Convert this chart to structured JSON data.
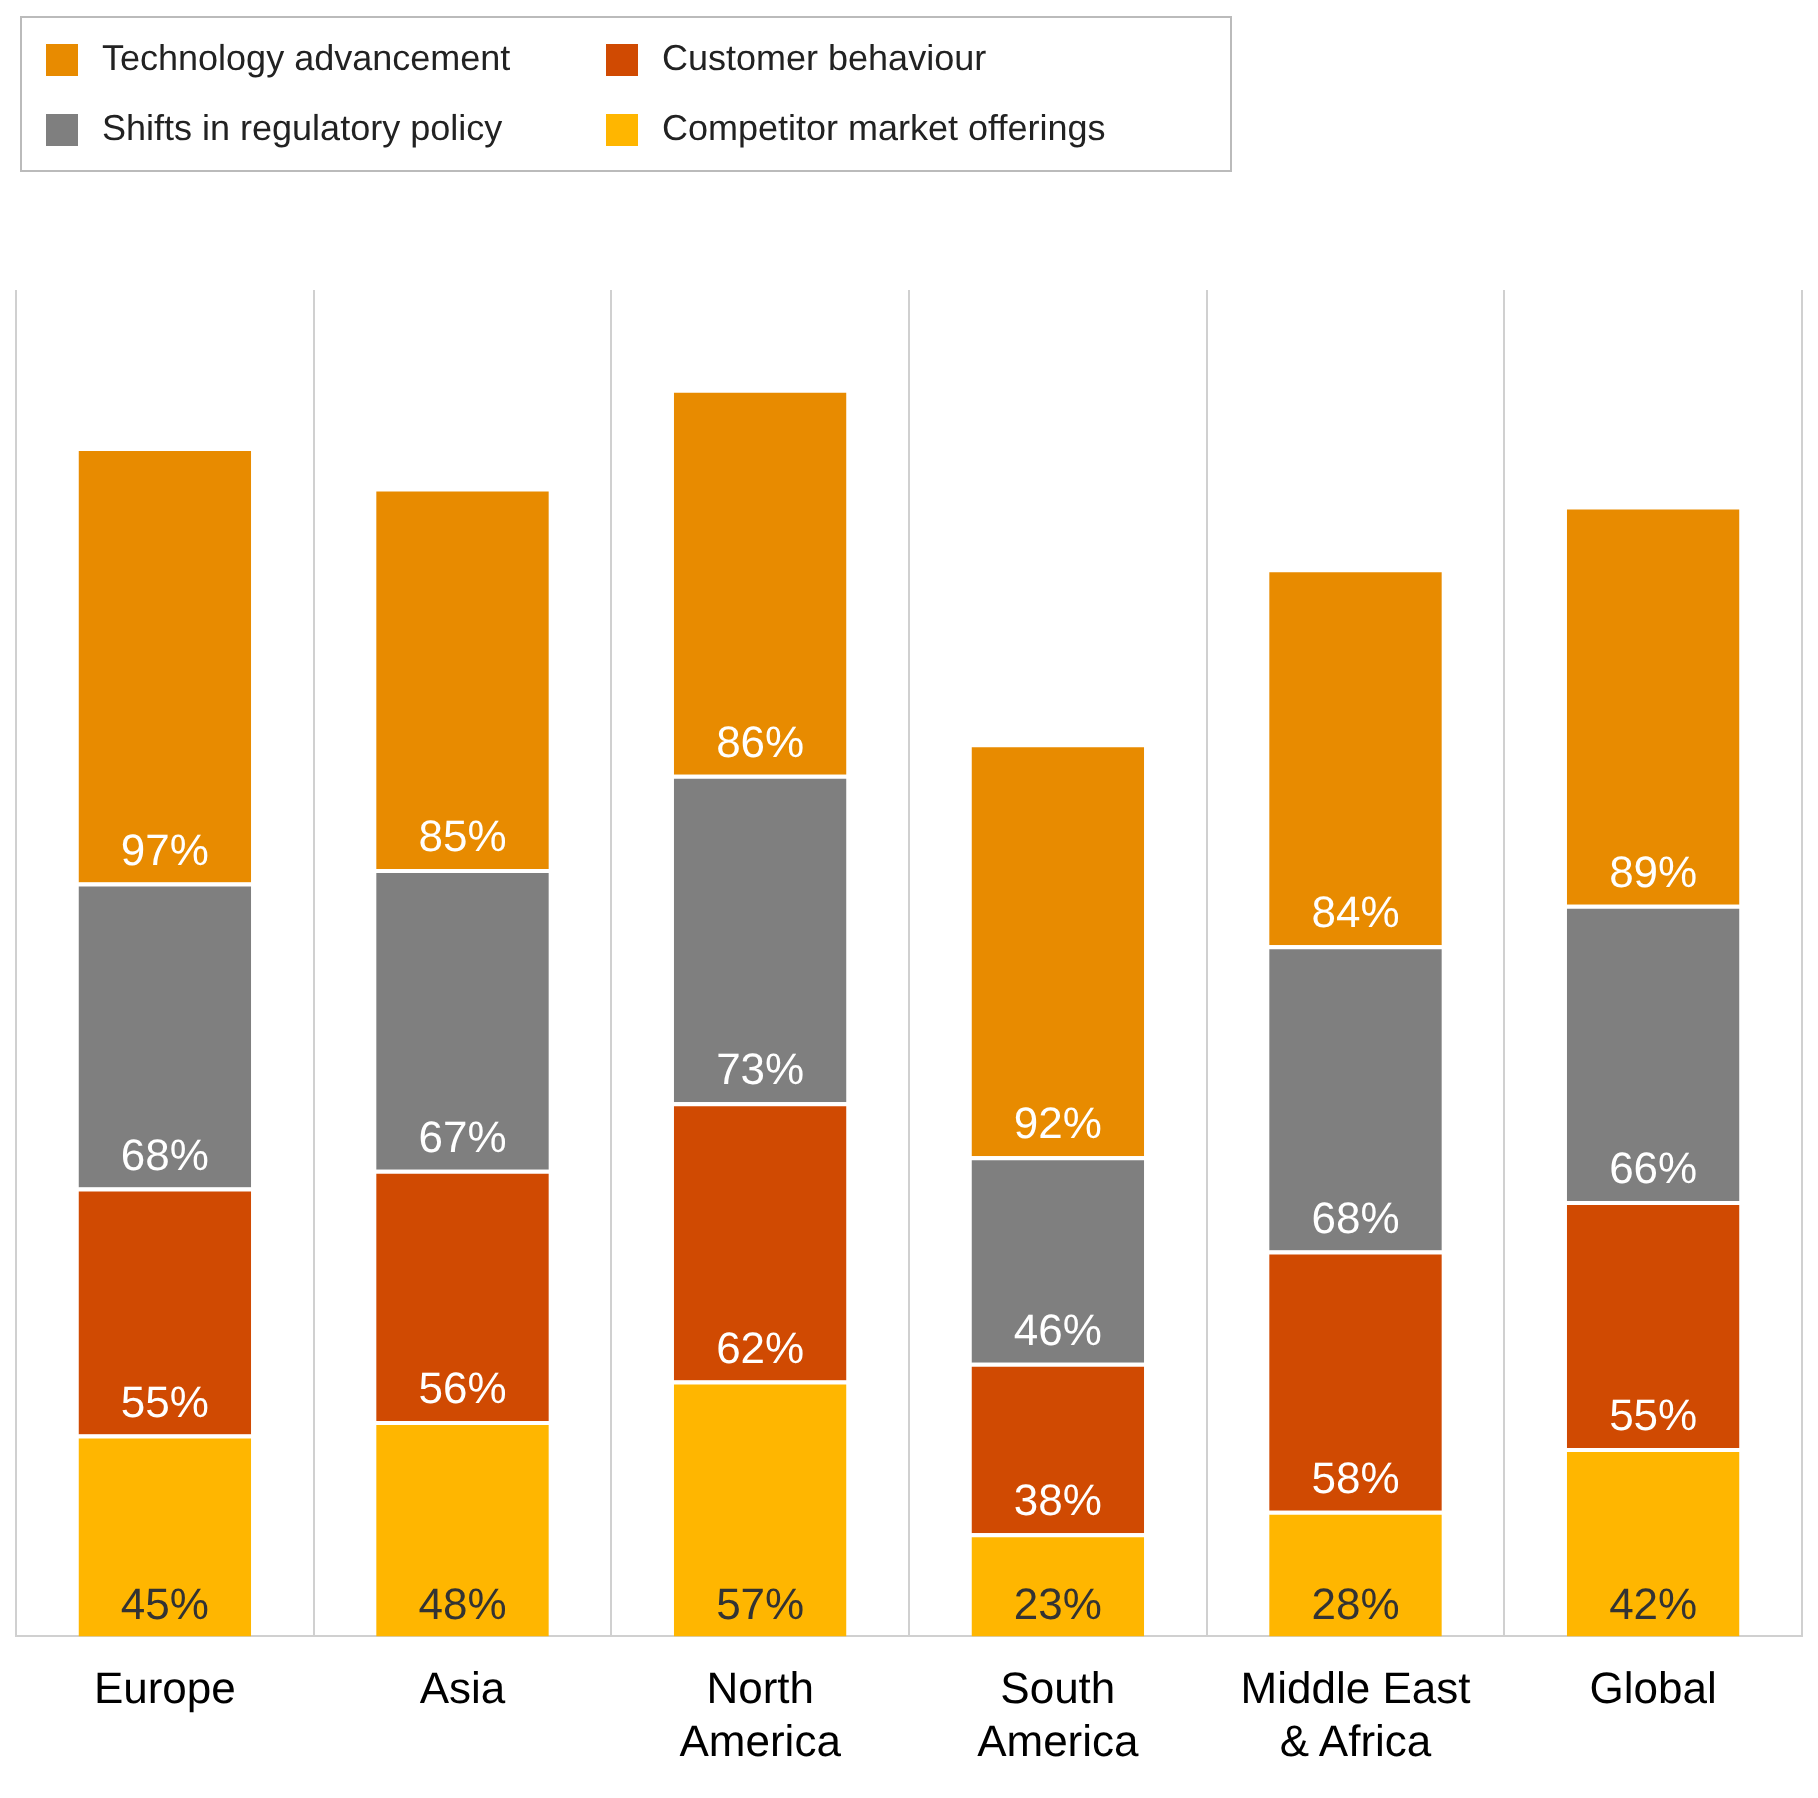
{
  "chart_data": {
    "type": "bar",
    "stacked": true,
    "categories": [
      "Europe",
      "Asia",
      "North America",
      "South America",
      "Middle East & Africa",
      "Global"
    ],
    "series": [
      {
        "name": "Competitor market offerings",
        "color": "#ffb600",
        "values": [
          45,
          48,
          57,
          23,
          28,
          42
        ],
        "value_labels": [
          "45%",
          "48%",
          "57%",
          "23%",
          "28%",
          "42%"
        ]
      },
      {
        "name": "Customer behaviour",
        "color": "#d04a02",
        "values": [
          55,
          56,
          62,
          38,
          58,
          55
        ],
        "value_labels": [
          "55%",
          "56%",
          "62%",
          "38%",
          "58%",
          "55%"
        ]
      },
      {
        "name": "Shifts in regulatory policy",
        "color": "#7f7f7f",
        "values": [
          68,
          67,
          73,
          46,
          68,
          66
        ],
        "value_labels": [
          "68%",
          "67%",
          "73%",
          "46%",
          "68%",
          "66%"
        ]
      },
      {
        "name": "Technology advancement",
        "color": "#e88b00",
        "values": [
          97,
          85,
          86,
          92,
          84,
          89
        ],
        "value_labels": [
          "97%",
          "85%",
          "86%",
          "92%",
          "84%",
          "89%"
        ]
      }
    ],
    "grid": "x",
    "legend": "top left"
  }
}
